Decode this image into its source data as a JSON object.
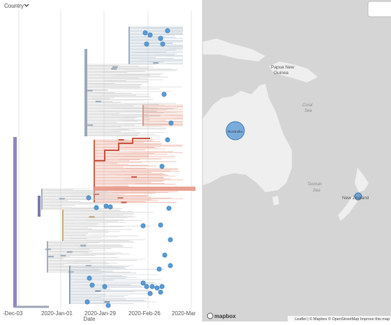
{
  "header": {
    "filter": "Country"
  },
  "tree": {
    "axis_ticks": [
      "-Dec-03",
      "2020-Jan-01",
      "2020-Jan-29",
      "2020-Feb-26",
      "2020-Mar"
    ],
    "axis_label": "Date"
  },
  "map": {
    "labels": [
      "Papua New",
      "Guinea",
      "Coral",
      "Sea",
      "Tasman",
      "Sea",
      "New Zealand",
      "Australia"
    ],
    "logo": "mapbox",
    "attribution": "Leaflet | © Mapbox © OpenStreetMap Improve this map"
  }
}
